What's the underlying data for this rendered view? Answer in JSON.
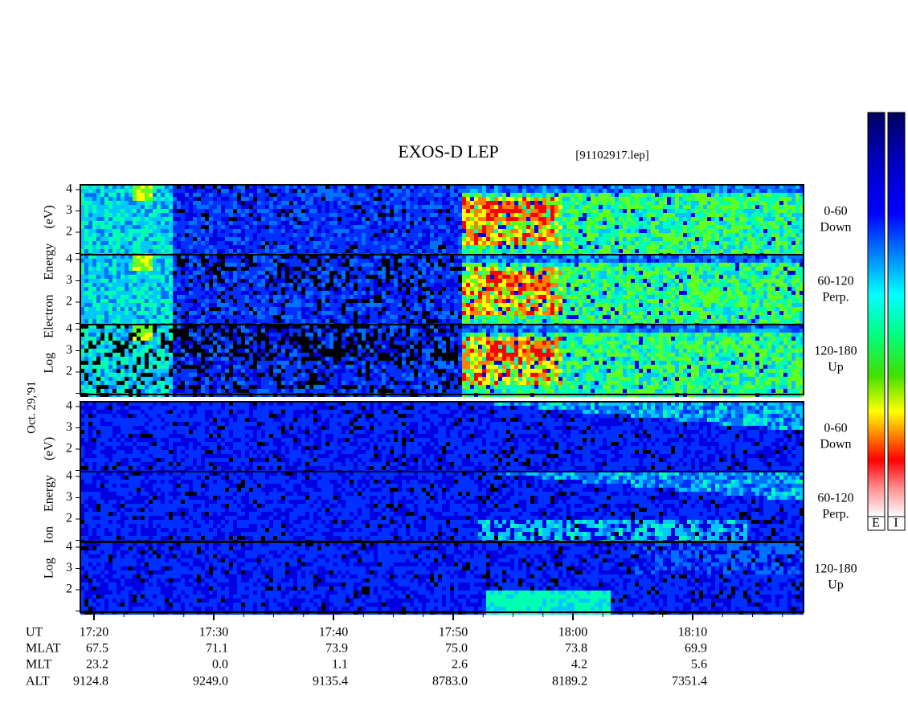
{
  "header": {
    "title": "EXOS-D LEP",
    "file": "[91102917.lep]"
  },
  "date": "Oct. 29,'91",
  "electron": {
    "axis_label": "Log Electron Energy (eV)",
    "panels": [
      {
        "range": "0-60",
        "direction": "Down"
      },
      {
        "range": "60-120",
        "direction": "Perp."
      },
      {
        "range": "120-180",
        "direction": "Up"
      }
    ]
  },
  "ion": {
    "axis_label": "Log Ion Energy (eV)",
    "panels": [
      {
        "range": "0-60",
        "direction": "Down"
      },
      {
        "range": "60-120",
        "direction": "Perp."
      },
      {
        "range": "120-180",
        "direction": "Up"
      }
    ]
  },
  "energy_ticks": [
    "4",
    "3",
    "2"
  ],
  "orbit": {
    "labels": [
      "UT",
      "MLAT",
      "MLT",
      "ALT"
    ],
    "columns": [
      [
        "17:20",
        "67.5",
        "23.2",
        "9124.8"
      ],
      [
        "17:30",
        "71.1",
        "0.0",
        "9249.0"
      ],
      [
        "17:40",
        "73.9",
        "1.1",
        "9135.4"
      ],
      [
        "17:50",
        "75.0",
        "2.6",
        "8783.0"
      ],
      [
        "18:00",
        "73.8",
        "4.2",
        "8189.2"
      ],
      [
        "18:10",
        "69.9",
        "5.6",
        "7351.4"
      ]
    ]
  },
  "colorbar": {
    "labels": [
      "E",
      "I"
    ]
  }
}
